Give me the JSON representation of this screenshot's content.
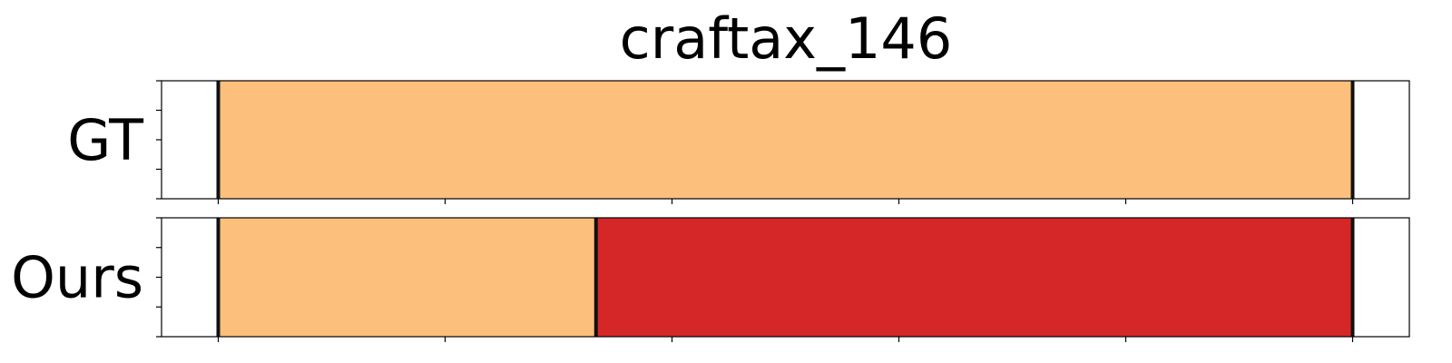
{
  "chart_data": {
    "type": "segmentation-timeline",
    "title": "craftax_146",
    "xlim": [
      -0.05,
      1.05
    ],
    "x_ticks": [
      0,
      0.2,
      0.4,
      0.6,
      0.8,
      1.0
    ],
    "show_x_tick_labels": false,
    "show_y_tick_labels": false,
    "y_ticks_per_row": 5,
    "rows": [
      {
        "label": "GT",
        "boundaries": [
          0.0,
          1.0
        ],
        "segments": [
          {
            "start": 0.0,
            "end": 1.0,
            "color": "#fdbf7c"
          }
        ]
      },
      {
        "label": "Ours",
        "boundaries": [
          0.0,
          0.333,
          1.0
        ],
        "segments": [
          {
            "start": 0.0,
            "end": 0.333,
            "color": "#fdbf7c"
          },
          {
            "start": 0.333,
            "end": 1.0,
            "color": "#d62728"
          }
        ]
      }
    ],
    "boundary_color": "#111111",
    "grid": false
  }
}
